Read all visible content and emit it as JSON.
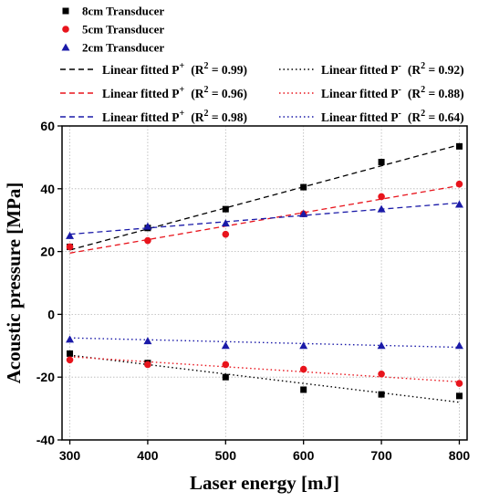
{
  "chart_data": {
    "type": "scatter",
    "xlabel": "Laser energy [mJ]",
    "ylabel": "Acoustic pressure [MPa]",
    "xlim": [
      290,
      810
    ],
    "ylim": [
      -40,
      60
    ],
    "xticks": [
      300,
      400,
      500,
      600,
      700,
      800
    ],
    "yticks": [
      -40,
      -20,
      0,
      20,
      40,
      60
    ],
    "grid": true,
    "legend_position": "top",
    "x": [
      300,
      400,
      500,
      600,
      700,
      800
    ],
    "series": [
      {
        "name": "8cm Transducer",
        "marker": "square",
        "color": "#000000",
        "positive": [
          21.5,
          27.5,
          33.5,
          40.5,
          48.5,
          53.5
        ],
        "negative": [
          -12.5,
          -15.5,
          -20,
          -24,
          -25.5,
          -26
        ]
      },
      {
        "name": "5cm Transducer",
        "marker": "circle",
        "color": "#e8141c",
        "positive": [
          21.5,
          23.5,
          25.5,
          32,
          37.5,
          41.5
        ],
        "negative": [
          -14.5,
          -16,
          -16,
          -17.5,
          -19,
          -22
        ]
      },
      {
        "name": "2cm Transducer",
        "marker": "triangle",
        "color": "#1a1aa8",
        "positive": [
          25,
          28,
          29,
          32,
          33.5,
          35
        ],
        "negative": [
          -8,
          -8.5,
          -10,
          -10,
          -10,
          -10
        ]
      }
    ],
    "fits": [
      {
        "color": "#000000",
        "positive": {
          "label": "Linear fitted P",
          "sup": "+",
          "r2": "(R",
          "r2sup": "2",
          "r2val": " = 0.99)",
          "line": [
            [
              300,
              20.5
            ],
            [
              800,
              54
            ]
          ]
        },
        "negative": {
          "label": "Linear fitted P",
          "sup": "-",
          "r2": "(R",
          "r2sup": "2",
          "r2val": " = 0.92)",
          "line": [
            [
              300,
              -13
            ],
            [
              800,
              -28
            ]
          ]
        }
      },
      {
        "color": "#e8141c",
        "positive": {
          "label": "Linear fitted P",
          "sup": "+",
          "r2": "(R",
          "r2sup": "2",
          "r2val": " = 0.96)",
          "line": [
            [
              300,
              19.5
            ],
            [
              800,
              41
            ]
          ]
        },
        "negative": {
          "label": "Linear fitted P",
          "sup": "-",
          "r2": "(R",
          "r2sup": "2",
          "r2val": " = 0.88)",
          "line": [
            [
              300,
              -13.5
            ],
            [
              800,
              -21.5
            ]
          ]
        }
      },
      {
        "color": "#1a1aa8",
        "positive": {
          "label": "Linear fitted P",
          "sup": "+",
          "r2": "(R",
          "r2sup": "2",
          "r2val": " = 0.98)",
          "line": [
            [
              300,
              25.5
            ],
            [
              800,
              35.5
            ]
          ]
        },
        "negative": {
          "label": "Linear fitted P",
          "sup": "-",
          "r2": "(R",
          "r2sup": "2",
          "r2val": " = 0.64)",
          "line": [
            [
              300,
              -7.5
            ],
            [
              800,
              -10.5
            ]
          ]
        }
      }
    ]
  }
}
